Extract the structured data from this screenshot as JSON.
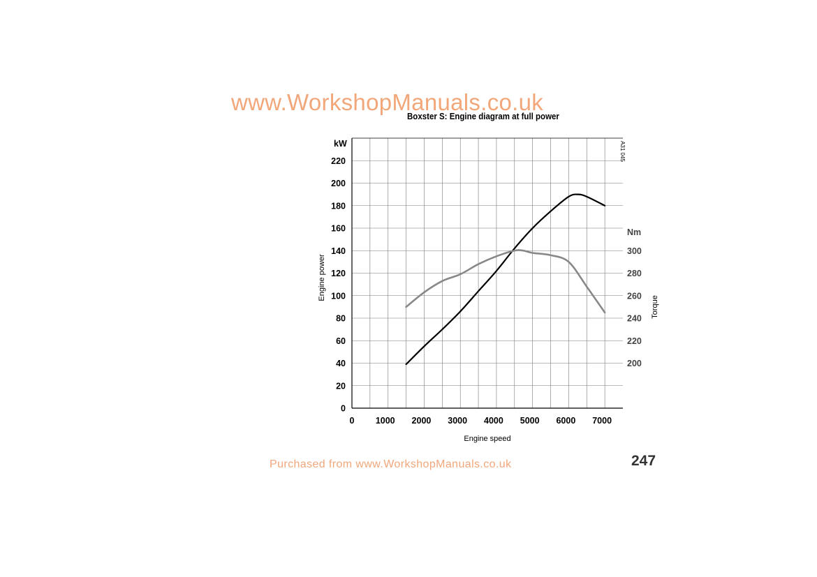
{
  "watermark_top": "www.WorkshopManuals.co.uk",
  "watermark_bottom": "Purchased from www.WorkshopManuals.co.uk",
  "page_number": "247",
  "chart_data": {
    "type": "line",
    "title": "Boxster S: Engine diagram at full power",
    "xlabel": "Engine speed",
    "ylabel": "Engine power",
    "y2label": "Torque",
    "y_unit": "kW",
    "y2_unit": "Nm",
    "figure_code": "A31 045",
    "x_ticks": [
      0,
      1000,
      2000,
      3000,
      4000,
      5000,
      6000,
      7000
    ],
    "y_ticks": [
      0,
      20,
      40,
      60,
      80,
      100,
      120,
      140,
      160,
      180,
      200,
      220
    ],
    "y2_ticks": [
      200,
      220,
      240,
      260,
      280,
      300
    ],
    "xlim": [
      0,
      7500
    ],
    "ylim": [
      0,
      240
    ],
    "y2_mapping": {
      "value_200_at_kW": 40,
      "value_300_at_kW": 140
    },
    "grid": true,
    "series": [
      {
        "name": "Engine power",
        "axis": "left",
        "color": "#000000",
        "x": [
          1500,
          2000,
          2500,
          3000,
          3500,
          4000,
          4500,
          5000,
          5500,
          6000,
          6250,
          6500,
          7000
        ],
        "y": [
          39,
          55,
          70,
          86,
          104,
          122,
          142,
          160,
          175,
          188,
          190,
          188,
          180
        ]
      },
      {
        "name": "Torque",
        "axis": "right",
        "color": "#888888",
        "x": [
          1500,
          2000,
          2500,
          3000,
          3500,
          4000,
          4500,
          4750,
          5000,
          5500,
          6000,
          6500,
          7000
        ],
        "y": [
          250,
          263,
          273,
          279,
          288,
          295,
          300,
          300,
          298,
          296,
          290,
          268,
          245
        ]
      }
    ]
  }
}
